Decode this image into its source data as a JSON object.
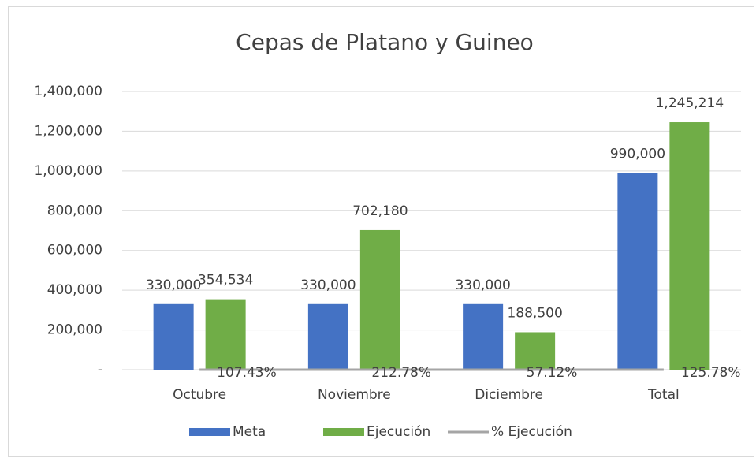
{
  "chart_data": {
    "type": "bar",
    "title": "Cepas de Platano y Guineo",
    "categories": [
      "Octubre",
      "Noviembre",
      "Diciembre",
      "Total"
    ],
    "series": [
      {
        "name": "Meta",
        "color": "#4472c4",
        "values": [
          330000,
          330000,
          330000,
          990000
        ],
        "value_labels": [
          "330,000",
          "330,000",
          "330,000",
          "990,000"
        ]
      },
      {
        "name": "Ejecución",
        "color": "#70ad47",
        "values": [
          354534,
          702180,
          188500,
          1245214
        ],
        "value_labels": [
          "354,534",
          "702,180",
          "188,500",
          "1,245,214"
        ]
      },
      {
        "name": "% Ejecución",
        "type": "line",
        "color": "#a5a5a5",
        "values": [
          1.0743,
          2.1278,
          0.5712,
          1.2578
        ],
        "value_labels": [
          "107.43%",
          "212.78%",
          "57.12%",
          "125.78%"
        ]
      }
    ],
    "ylim": [
      0,
      1400000
    ],
    "yticks": [
      {
        "value": 0,
        "label": "-"
      },
      {
        "value": 200000,
        "label": "200,000"
      },
      {
        "value": 400000,
        "label": "400,000"
      },
      {
        "value": 600000,
        "label": "600,000"
      },
      {
        "value": 800000,
        "label": "800,000"
      },
      {
        "value": 1000000,
        "label": "1,000,000"
      },
      {
        "value": 1200000,
        "label": "1,200,000"
      },
      {
        "value": 1400000,
        "label": "1,400,000"
      }
    ],
    "grid": true,
    "legend": "bottom"
  }
}
